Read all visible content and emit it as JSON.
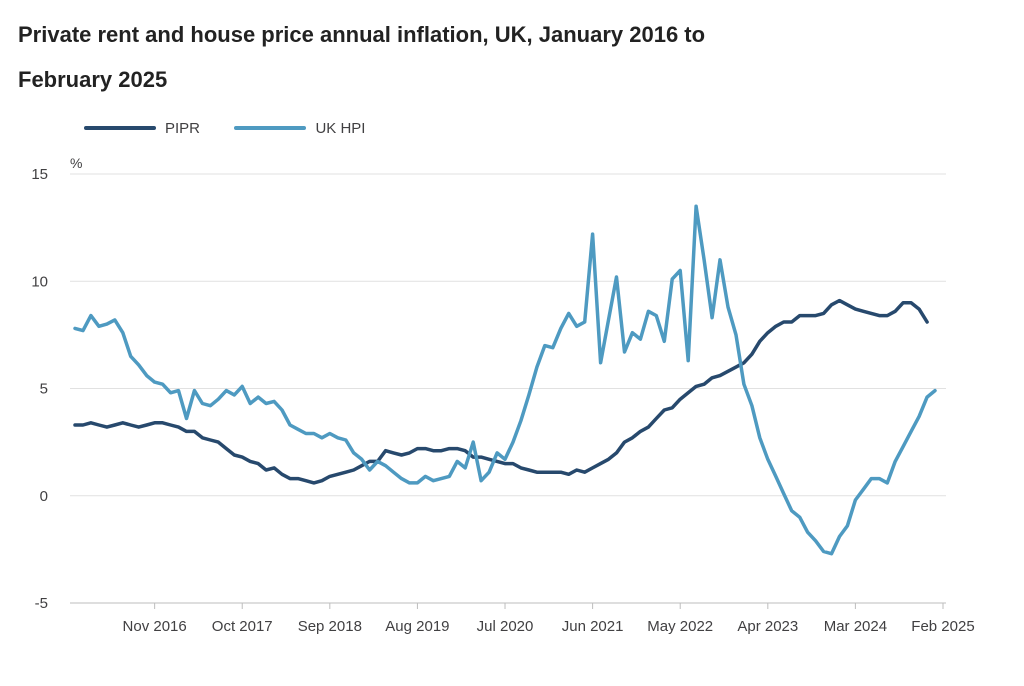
{
  "chart_data": {
    "type": "line",
    "title": "Private rent and house price annual inflation, UK, January 2016 to February 2025",
    "ylabel": "%",
    "ylim": [
      -5,
      15
    ],
    "yticks": [
      "15",
      "10",
      "5",
      "0",
      "-5"
    ],
    "ytick_values": [
      15,
      10,
      5,
      0,
      -5
    ],
    "xlim": [
      "2016-01",
      "2025-02"
    ],
    "xticks": [
      {
        "label": "Nov 2016",
        "date": "2016-11"
      },
      {
        "label": "Oct 2017",
        "date": "2017-10"
      },
      {
        "label": "Sep 2018",
        "date": "2018-09"
      },
      {
        "label": "Aug 2019",
        "date": "2019-08"
      },
      {
        "label": "Jul 2020",
        "date": "2020-07"
      },
      {
        "label": "Jun 2021",
        "date": "2021-06"
      },
      {
        "label": "May 2022",
        "date": "2022-05"
      },
      {
        "label": "Apr 2023",
        "date": "2023-04"
      },
      {
        "label": "Mar 2024",
        "date": "2024-03"
      },
      {
        "label": "Feb 2025",
        "date": "2025-02"
      }
    ],
    "grid": true,
    "legend_position": "top-left",
    "start_month": "2016-01",
    "series": [
      {
        "name": "PIPR",
        "color": "#27496d",
        "values": [
          3.3,
          3.3,
          3.4,
          3.3,
          3.2,
          3.3,
          3.4,
          3.3,
          3.2,
          3.3,
          3.4,
          3.4,
          3.3,
          3.2,
          3.0,
          3.0,
          2.7,
          2.6,
          2.5,
          2.2,
          1.9,
          1.8,
          1.6,
          1.5,
          1.2,
          1.3,
          1.0,
          0.8,
          0.8,
          0.7,
          0.6,
          0.7,
          0.9,
          1.0,
          1.1,
          1.2,
          1.4,
          1.6,
          1.6,
          2.1,
          2.0,
          1.9,
          2.0,
          2.2,
          2.2,
          2.1,
          2.1,
          2.2,
          2.2,
          2.1,
          1.8,
          1.8,
          1.7,
          1.6,
          1.5,
          1.5,
          1.3,
          1.2,
          1.1,
          1.1,
          1.1,
          1.1,
          1.0,
          1.2,
          1.1,
          1.3,
          1.5,
          1.7,
          2.0,
          2.5,
          2.7,
          3.0,
          3.2,
          3.6,
          4.0,
          4.1,
          4.5,
          4.8,
          5.1,
          5.2,
          5.5,
          5.6,
          5.8,
          6.0,
          6.2,
          6.6,
          7.2,
          7.6,
          7.9,
          8.1,
          8.1,
          8.4,
          8.4,
          8.4,
          8.5,
          8.9,
          9.1,
          8.9,
          8.7,
          8.6,
          8.5,
          8.4,
          8.4,
          8.6,
          9.0,
          9.0,
          8.7,
          8.1
        ]
      },
      {
        "name": "UK HPI",
        "color": "#4e9ac1",
        "values": [
          7.8,
          7.7,
          8.4,
          7.9,
          8.0,
          8.2,
          7.6,
          6.5,
          6.1,
          5.6,
          5.3,
          5.2,
          4.8,
          4.9,
          3.6,
          4.9,
          4.3,
          4.2,
          4.5,
          4.9,
          4.7,
          5.1,
          4.3,
          4.6,
          4.3,
          4.4,
          4.0,
          3.3,
          3.1,
          2.9,
          2.9,
          2.7,
          2.9,
          2.7,
          2.6,
          2.0,
          1.7,
          1.2,
          1.6,
          1.4,
          1.1,
          0.8,
          0.6,
          0.6,
          0.9,
          0.7,
          0.8,
          0.9,
          1.6,
          1.3,
          2.5,
          0.7,
          1.1,
          2.0,
          1.7,
          2.5,
          3.5,
          4.7,
          6.0,
          7.0,
          6.9,
          7.8,
          8.5,
          7.9,
          8.1,
          12.2,
          6.2,
          8.2,
          10.2,
          6.7,
          7.6,
          7.3,
          8.6,
          8.4,
          7.2,
          10.1,
          10.5,
          6.3,
          13.5,
          11.0,
          8.3,
          11.0,
          8.8,
          7.5,
          5.2,
          4.2,
          2.7,
          1.7,
          0.9,
          0.1,
          -0.7,
          -1.0,
          -1.7,
          -2.1,
          -2.6,
          -2.7,
          -1.9,
          -1.4,
          -0.2,
          0.3,
          0.8,
          0.8,
          0.6,
          1.6,
          2.3,
          3.0,
          3.7,
          4.6,
          4.9
        ]
      }
    ]
  }
}
